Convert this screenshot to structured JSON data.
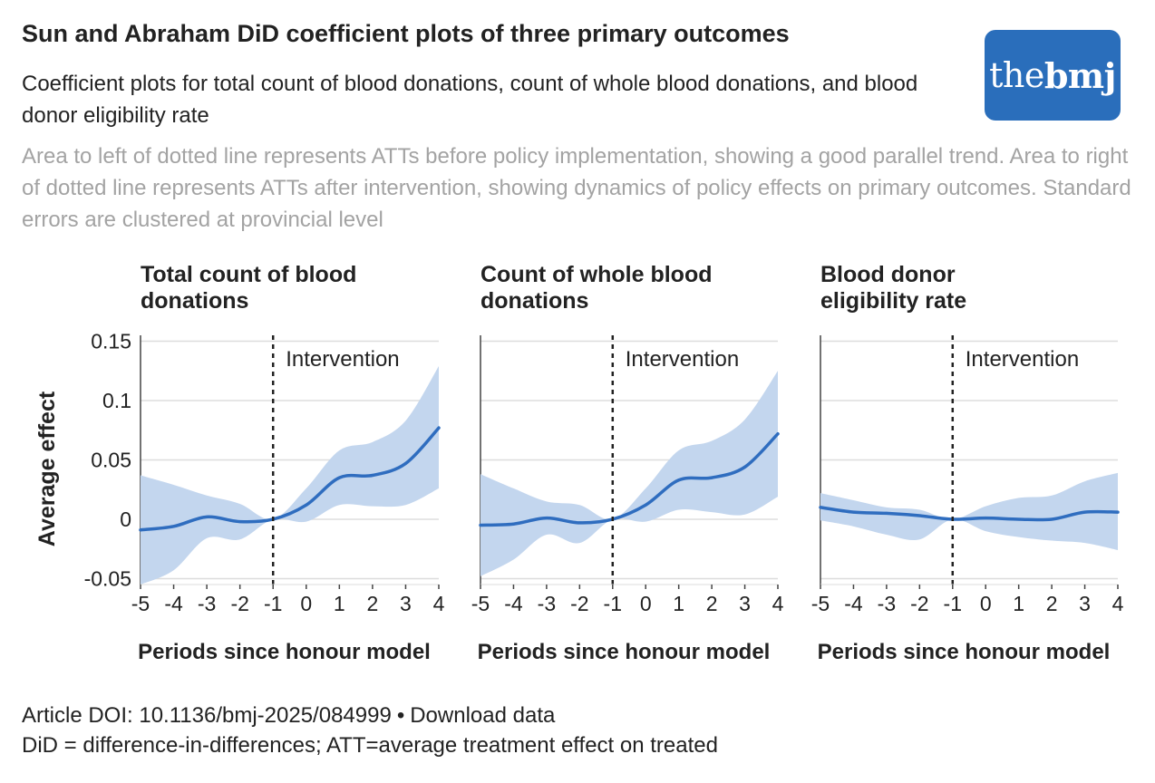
{
  "header": {
    "title": "Sun and Abraham DiD coefficient plots of three primary outcomes",
    "subtitle": "Coefficient plots for total count of blood donations, count of whole blood donations, and blood donor eligibility rate",
    "description": "Area to left of dotted line represents ATTs before policy implementation, showing a good parallel trend. Area to right of dotted line represents ATTs after intervention, showing dynamics of policy effects on primary outcomes. Standard errors are clustered at provincial level"
  },
  "logo": {
    "text_light": "the",
    "text_bold": "bmj",
    "color": "#2a6ebb"
  },
  "colors": {
    "line": "#2f6dbf",
    "band": "#c3d6ee",
    "grid": "#dddddd"
  },
  "chart_data": [
    {
      "type": "line",
      "title": "Total count of blood donations",
      "xlabel": "Periods since honour model",
      "ylabel": "Average effect",
      "x": [
        -5,
        -4,
        -3,
        -2,
        -1,
        0,
        1,
        2,
        3,
        4
      ],
      "ylim": [
        -0.055,
        0.155
      ],
      "yticks": [
        0.15,
        0.1,
        0.05,
        0,
        -0.05
      ],
      "ytick_labels": [
        "0.15",
        "0.1",
        "0.05",
        "0",
        "-0.05"
      ],
      "annotation": "Intervention",
      "intervention_x": -1,
      "series": [
        {
          "name": "ATT",
          "values": [
            -0.009,
            -0.006,
            0.002,
            -0.002,
            0.0,
            0.012,
            0.035,
            0.037,
            0.047,
            0.077
          ]
        },
        {
          "name": "CI lower",
          "values": [
            -0.055,
            -0.043,
            -0.016,
            -0.017,
            0.0,
            -0.002,
            0.012,
            0.011,
            0.012,
            0.026
          ]
        },
        {
          "name": "CI upper",
          "values": [
            0.037,
            0.029,
            0.02,
            0.013,
            0.0,
            0.026,
            0.058,
            0.065,
            0.083,
            0.129
          ]
        }
      ]
    },
    {
      "type": "line",
      "title": "Count of whole blood donations",
      "xlabel": "Periods since honour model",
      "ylabel": "",
      "x": [
        -5,
        -4,
        -3,
        -2,
        -1,
        0,
        1,
        2,
        3,
        4
      ],
      "ylim": [
        -0.055,
        0.155
      ],
      "yticks": [
        0.15,
        0.1,
        0.05,
        0,
        -0.05
      ],
      "ytick_labels": [],
      "annotation": "Intervention",
      "intervention_x": -1,
      "series": [
        {
          "name": "ATT",
          "values": [
            -0.005,
            -0.004,
            0.001,
            -0.003,
            0.0,
            0.012,
            0.033,
            0.035,
            0.044,
            0.072
          ]
        },
        {
          "name": "CI lower",
          "values": [
            -0.048,
            -0.034,
            -0.013,
            -0.02,
            0.0,
            -0.002,
            0.008,
            0.006,
            0.004,
            0.019
          ]
        },
        {
          "name": "CI upper",
          "values": [
            0.038,
            0.026,
            0.015,
            0.012,
            0.0,
            0.026,
            0.058,
            0.066,
            0.084,
            0.125
          ]
        }
      ]
    },
    {
      "type": "line",
      "title": "Blood donor eligibility rate",
      "xlabel": "Periods since honour model",
      "ylabel": "",
      "x": [
        -5,
        -4,
        -3,
        -2,
        -1,
        0,
        1,
        2,
        3,
        4
      ],
      "ylim": [
        -0.055,
        0.155
      ],
      "yticks": [
        0.15,
        0.1,
        0.05,
        0,
        -0.05
      ],
      "ytick_labels": [],
      "annotation": "Intervention",
      "intervention_x": -1,
      "series": [
        {
          "name": "ATT",
          "values": [
            0.01,
            0.006,
            0.005,
            0.003,
            0.0,
            0.001,
            0.0,
            0.0,
            0.006,
            0.006
          ]
        },
        {
          "name": "CI lower",
          "values": [
            -0.001,
            -0.006,
            -0.013,
            -0.017,
            0.0,
            -0.01,
            -0.015,
            -0.018,
            -0.02,
            -0.026
          ]
        },
        {
          "name": "CI upper",
          "values": [
            0.022,
            0.016,
            0.01,
            0.008,
            0.0,
            0.011,
            0.018,
            0.02,
            0.032,
            0.039
          ]
        }
      ]
    }
  ],
  "footer": {
    "doi_text": "Article DOI: 10.1136/bmj-2025/084999",
    "separator": "•",
    "download_text": "Download data",
    "note": "DiD = difference-in-differences; ATT=average treatment effect on treated"
  }
}
